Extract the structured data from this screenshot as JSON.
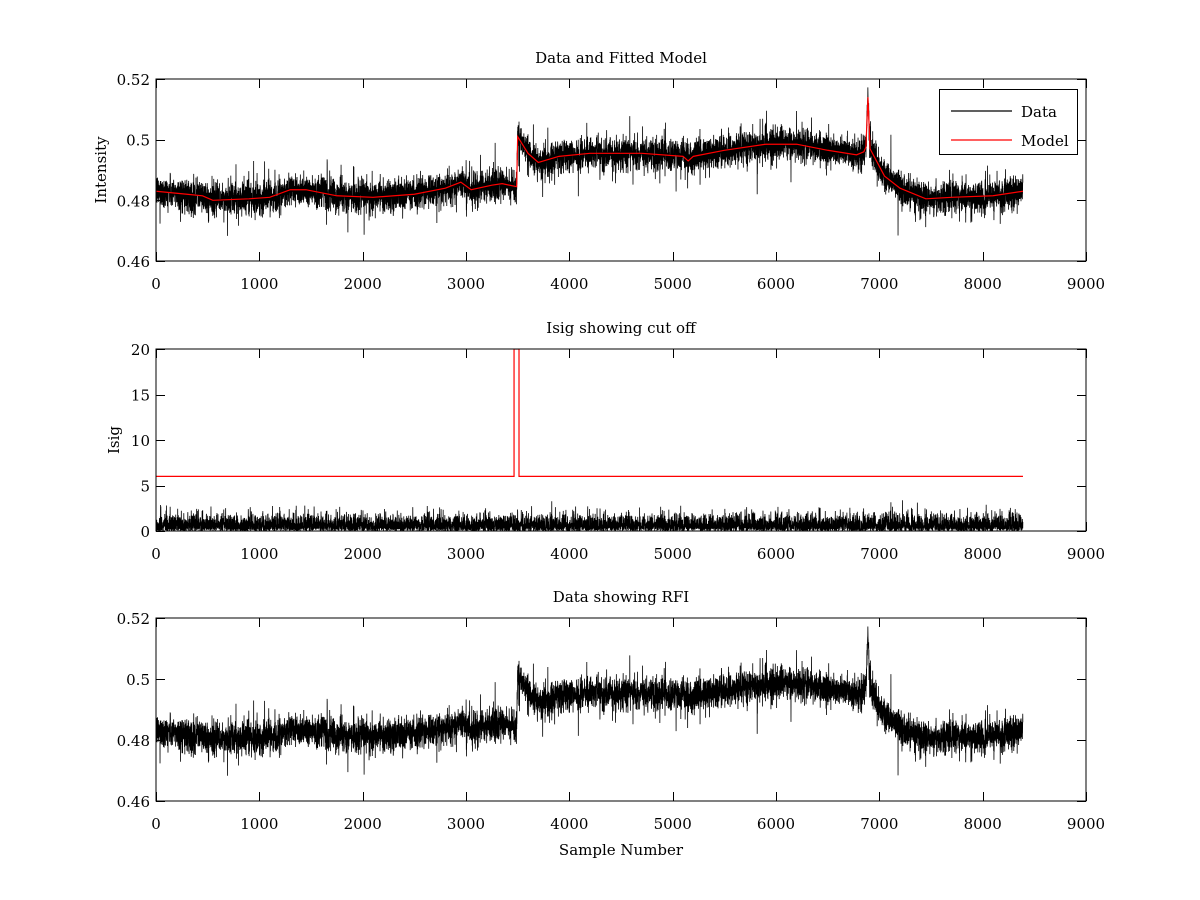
{
  "chart_data": [
    {
      "type": "line",
      "title": "Data and Fitted Model",
      "xlabel": "",
      "ylabel": "Intensity",
      "xlim": [
        0,
        9000
      ],
      "ylim": [
        0.46,
        0.52
      ],
      "xticks": [
        0,
        1000,
        2000,
        3000,
        4000,
        5000,
        6000,
        7000,
        8000,
        9000
      ],
      "xtick_labels": [
        "0",
        "1000",
        "2000",
        "3000",
        "4000",
        "5000",
        "6000",
        "7000",
        "8000",
        "9000"
      ],
      "yticks": [
        0.46,
        0.48,
        0.5,
        0.52
      ],
      "ytick_labels": [
        "0.46",
        "0.48",
        "0.5",
        "0.52"
      ],
      "grid": false,
      "legend": {
        "placement": "top-right",
        "entries": [
          "Data",
          "Model"
        ]
      },
      "series": [
        {
          "name": "Data",
          "color": "#000000",
          "kind": "noisy",
          "n_samples": 8390,
          "noise_sd": 0.0035,
          "trend_ref": "Model"
        },
        {
          "name": "Model",
          "color": "#ff0000",
          "kind": "trend",
          "x": [
            0,
            300,
            450,
            550,
            900,
            1100,
            1300,
            1450,
            1750,
            2100,
            2500,
            2800,
            2950,
            3050,
            3250,
            3350,
            3490,
            3500,
            3600,
            3700,
            3900,
            4200,
            4700,
            5100,
            5150,
            5200,
            5500,
            5900,
            6200,
            6500,
            6780,
            6850,
            6870,
            6890,
            6910,
            7050,
            7200,
            7450,
            7700,
            8100,
            8390
          ],
          "y": [
            0.483,
            0.482,
            0.4815,
            0.48,
            0.4805,
            0.481,
            0.4835,
            0.4835,
            0.4815,
            0.481,
            0.482,
            0.484,
            0.486,
            0.4835,
            0.485,
            0.4855,
            0.4845,
            0.501,
            0.4955,
            0.4925,
            0.4945,
            0.4955,
            0.4955,
            0.4945,
            0.493,
            0.4945,
            0.4965,
            0.4985,
            0.4985,
            0.4965,
            0.495,
            0.496,
            0.4975,
            0.514,
            0.497,
            0.488,
            0.484,
            0.4805,
            0.481,
            0.4815,
            0.483
          ]
        }
      ]
    },
    {
      "type": "line",
      "title": "Isig showing cut off",
      "xlabel": "",
      "ylabel": "Isig",
      "xlim": [
        0,
        9000
      ],
      "ylim": [
        0,
        20
      ],
      "xticks": [
        0,
        1000,
        2000,
        3000,
        4000,
        5000,
        6000,
        7000,
        8000,
        9000
      ],
      "xtick_labels": [
        "0",
        "1000",
        "2000",
        "3000",
        "4000",
        "5000",
        "6000",
        "7000",
        "8000",
        "9000"
      ],
      "yticks": [
        0,
        5,
        10,
        15,
        20
      ],
      "ytick_labels": [
        "0",
        "5",
        "10",
        "15",
        "20"
      ],
      "grid": false,
      "series": [
        {
          "name": "Isig",
          "color": "#000000",
          "kind": "abs-noise",
          "n_samples": 8390,
          "noise_sd": 0.85
        },
        {
          "name": "Cut off",
          "color": "#ff0000",
          "kind": "trend",
          "x": [
            0,
            3465,
            3465,
            3513,
            3513,
            8390
          ],
          "y": [
            6,
            6,
            20,
            20,
            6,
            6
          ]
        }
      ]
    },
    {
      "type": "line",
      "title": "Data showing RFI",
      "xlabel": "Sample Number",
      "ylabel": "",
      "xlim": [
        0,
        9000
      ],
      "ylim": [
        0.46,
        0.52
      ],
      "xticks": [
        0,
        1000,
        2000,
        3000,
        4000,
        5000,
        6000,
        7000,
        8000,
        9000
      ],
      "xtick_labels": [
        "0",
        "1000",
        "2000",
        "3000",
        "4000",
        "5000",
        "6000",
        "7000",
        "8000",
        "9000"
      ],
      "yticks": [
        0.46,
        0.48,
        0.5,
        0.52
      ],
      "ytick_labels": [
        "0.46",
        "0.48",
        "0.5",
        "0.52"
      ],
      "grid": false,
      "series": [
        {
          "name": "Data",
          "color": "#000000",
          "kind": "noisy",
          "n_samples": 8390,
          "noise_sd": 0.0035,
          "trend_ref_chart": 0,
          "trend_ref": "Model"
        }
      ]
    }
  ]
}
